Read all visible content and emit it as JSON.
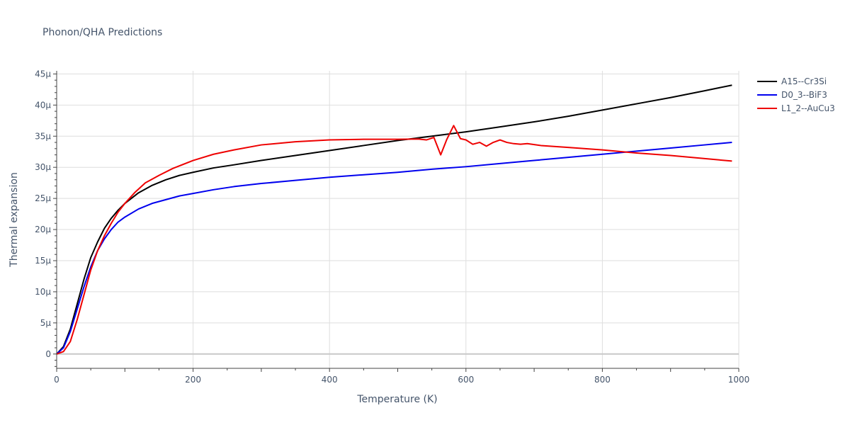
{
  "chart_data": {
    "type": "line",
    "title": "Phonon/QHA Predictions",
    "xlabel": "Temperature (K)",
    "ylabel": "Thermal expansion",
    "xlim": [
      0,
      1000
    ],
    "ylim": [
      -2.3e-06,
      4.55e-05
    ],
    "x_ticks": [
      0,
      200,
      400,
      600,
      800,
      1000
    ],
    "x_tick_labels": [
      "0",
      "200",
      "400",
      "600",
      "800",
      "1000"
    ],
    "y_ticks": [
      0,
      5e-06,
      1e-05,
      1.5e-05,
      2e-05,
      2.5e-05,
      3e-05,
      3.5e-05,
      4e-05,
      4.5e-05
    ],
    "y_tick_labels": [
      "0",
      "5μ",
      "10μ",
      "15μ",
      "20μ",
      "25μ",
      "30μ",
      "35μ",
      "40μ",
      "45μ"
    ],
    "grid": true,
    "legend_position": "top-right",
    "series": [
      {
        "name": "A15--Cr3Si",
        "color": "#000000",
        "x": [
          0,
          10,
          20,
          30,
          40,
          50,
          60,
          70,
          80,
          90,
          100,
          120,
          140,
          160,
          180,
          200,
          230,
          260,
          300,
          350,
          400,
          450,
          500,
          550,
          600,
          650,
          700,
          750,
          800,
          850,
          900,
          950,
          990
        ],
        "y": [
          0,
          1.2e-06,
          4e-06,
          8e-06,
          1.2e-05,
          1.55e-05,
          1.8e-05,
          2.02e-05,
          2.18e-05,
          2.31e-05,
          2.42e-05,
          2.59e-05,
          2.71e-05,
          2.8e-05,
          2.87e-05,
          2.92e-05,
          2.99e-05,
          3.04e-05,
          3.11e-05,
          3.19e-05,
          3.27e-05,
          3.35e-05,
          3.43e-05,
          3.5e-05,
          3.57e-05,
          3.65e-05,
          3.73e-05,
          3.82e-05,
          3.92e-05,
          4.02e-05,
          4.12e-05,
          4.23e-05,
          4.32e-05
        ]
      },
      {
        "name": "D0_3--BiF3",
        "color": "#0000ee",
        "x": [
          0,
          10,
          20,
          30,
          40,
          50,
          60,
          70,
          80,
          90,
          100,
          120,
          140,
          160,
          180,
          200,
          230,
          260,
          300,
          350,
          400,
          450,
          500,
          550,
          600,
          650,
          700,
          750,
          800,
          850,
          900,
          950,
          990
        ],
        "y": [
          0,
          1e-06,
          3.6e-06,
          7.2e-06,
          1.08e-05,
          1.4e-05,
          1.66e-05,
          1.85e-05,
          2e-05,
          2.12e-05,
          2.2e-05,
          2.33e-05,
          2.42e-05,
          2.48e-05,
          2.54e-05,
          2.58e-05,
          2.64e-05,
          2.69e-05,
          2.74e-05,
          2.79e-05,
          2.84e-05,
          2.88e-05,
          2.92e-05,
          2.97e-05,
          3.01e-05,
          3.06e-05,
          3.11e-05,
          3.16e-05,
          3.21e-05,
          3.26e-05,
          3.31e-05,
          3.36e-05,
          3.4e-05
        ]
      },
      {
        "name": "L1_2--AuCu3",
        "color": "#ee0000",
        "x": [
          0,
          10,
          20,
          30,
          40,
          50,
          60,
          70,
          80,
          90,
          100,
          115,
          130,
          150,
          170,
          200,
          230,
          260,
          300,
          350,
          400,
          450,
          500,
          530,
          542,
          553,
          563,
          572,
          582,
          592,
          600,
          610,
          620,
          630,
          640,
          650,
          660,
          670,
          680,
          690,
          710,
          750,
          800,
          850,
          900,
          950,
          990
        ],
        "y": [
          0,
          4e-07,
          2e-06,
          5.5e-06,
          9.5e-06,
          1.35e-05,
          1.66e-05,
          1.9e-05,
          2.1e-05,
          2.28e-05,
          2.42e-05,
          2.6e-05,
          2.75e-05,
          2.87e-05,
          2.98e-05,
          3.11e-05,
          3.21e-05,
          3.28e-05,
          3.36e-05,
          3.41e-05,
          3.44e-05,
          3.45e-05,
          3.45e-05,
          3.455e-05,
          3.44e-05,
          3.48e-05,
          3.2e-05,
          3.45e-05,
          3.67e-05,
          3.46e-05,
          3.44e-05,
          3.37e-05,
          3.4e-05,
          3.34e-05,
          3.4e-05,
          3.44e-05,
          3.4e-05,
          3.38e-05,
          3.37e-05,
          3.38e-05,
          3.35e-05,
          3.32e-05,
          3.28e-05,
          3.23e-05,
          3.19e-05,
          3.14e-05,
          3.1e-05
        ]
      }
    ]
  }
}
